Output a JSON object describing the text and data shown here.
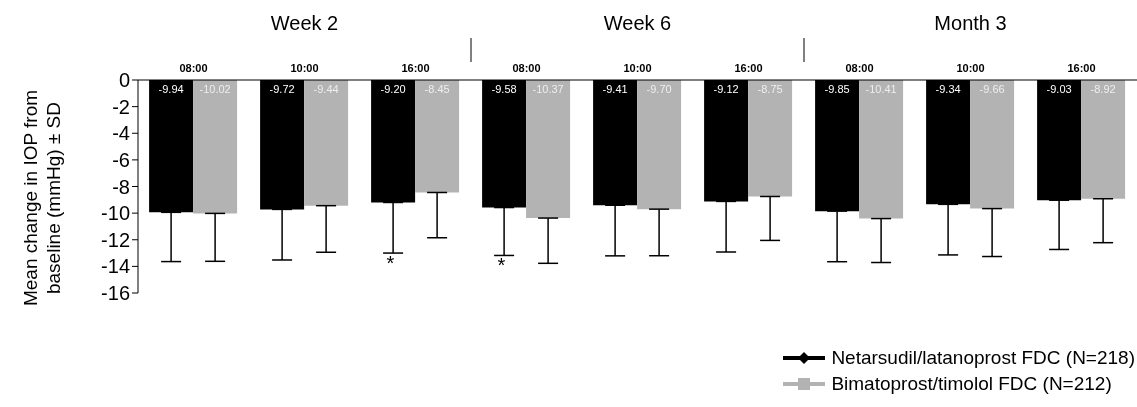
{
  "chart_data": {
    "type": "bar",
    "categories": [
      "08:00",
      "10:00",
      "16:00",
      "08:00",
      "10:00",
      "16:00",
      "08:00",
      "10:00",
      "16:00"
    ],
    "ylabel": "Mean change in IOP from baseline (mmHg) ± SD",
    "annotations": [
      "Week 2",
      "Week 6",
      "Month 3",
      "*",
      "*"
    ],
    "series": [
      {
        "name": "Netarsudil/latanoprost FDC (N=218)",
        "color": "#000000",
        "values": [
          -9.94,
          -9.72,
          -9.2,
          -9.58,
          -9.41,
          -9.12,
          -9.85,
          -9.34,
          -9.03
        ],
        "value_labels": [
          "-9.94",
          "-9.72",
          "-9.20",
          "-9.58",
          "-9.41",
          "-9.12",
          "-9.85",
          "-9.34",
          "-9.03"
        ],
        "errors": [
          [
            -13.64,
            -9.94
          ],
          [
            -13.52,
            -9.72
          ],
          [
            -13.0,
            -9.2
          ],
          [
            -13.18,
            -9.58
          ],
          [
            -13.21,
            -9.41
          ],
          [
            -12.92,
            -9.12
          ],
          [
            -13.65,
            -9.85
          ],
          [
            -13.14,
            -9.34
          ],
          [
            -12.73,
            -9.03
          ]
        ]
      },
      {
        "name": "Bimatoprost/timolol FDC (N=212)",
        "color": "#b3b3b3",
        "values": [
          -10.02,
          -9.44,
          -8.45,
          -10.37,
          -9.7,
          -8.75,
          -10.41,
          -9.66,
          -8.92
        ],
        "value_labels": [
          "-10.02",
          "-9.44",
          "-8.45",
          "-10.37",
          "-9.70",
          "-8.75",
          "-10.41",
          "-9.66",
          "-8.92"
        ],
        "errors": [
          [
            -13.62,
            -10.02
          ],
          [
            -12.94,
            -9.44
          ],
          [
            -11.85,
            -8.45
          ],
          [
            -13.77,
            -10.37
          ],
          [
            -13.2,
            -9.7
          ],
          [
            -12.05,
            -8.75
          ],
          [
            -13.71,
            -10.41
          ],
          [
            -13.26,
            -9.66
          ],
          [
            -12.22,
            -8.92
          ]
        ]
      }
    ],
    "ylim": [
      -16,
      0
    ],
    "yticks": [
      0,
      -2,
      -4,
      -6,
      -8,
      -10,
      -12,
      -14,
      -16
    ],
    "legend": "bottom right"
  }
}
